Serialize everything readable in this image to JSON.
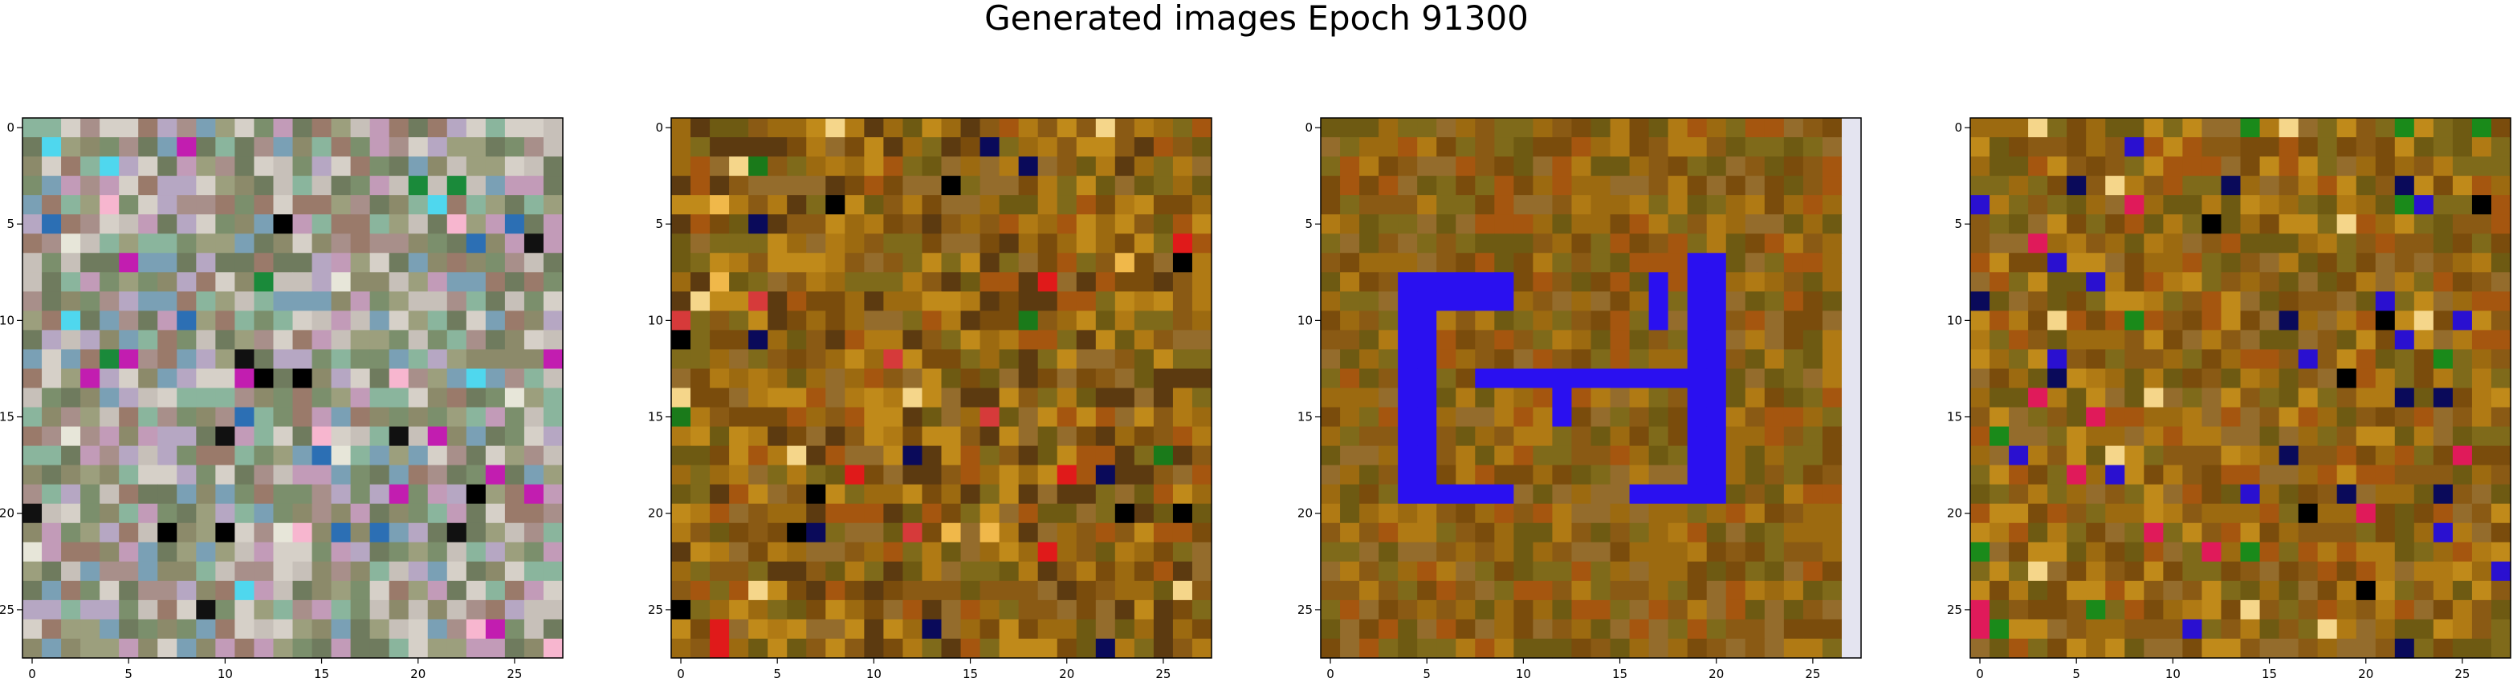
{
  "title": "Generated images Epoch 91300",
  "chart_data": {
    "type": "heatmap",
    "title": "Generated images Epoch 91300",
    "panels": 4,
    "grid_size": [
      28,
      28
    ],
    "xlim": [
      0,
      27
    ],
    "ylim": [
      27,
      0
    ],
    "x_ticks": [
      0,
      5,
      10,
      15,
      20,
      25
    ],
    "y_ticks": [
      0,
      5,
      10,
      15,
      20,
      25
    ],
    "xlabel": "",
    "ylabel": "",
    "grid": false,
    "images": [
      {
        "description": "noisy multicolored pastel pixel image",
        "palette": [
          "#8c8a6a",
          "#9c9f7d",
          "#a88f8a",
          "#7b8f6c",
          "#c7c0b9",
          "#6f7b5e",
          "#b6a7c3",
          "#8ab59d",
          "#d6d0c8",
          "#9a7a6a",
          "#7aa0b5",
          "#c29bb8"
        ],
        "accents": [
          "#000000",
          "#111111",
          "#4fd7ee",
          "#1a8a3a",
          "#c21db0",
          "#f7b6cf",
          "#e7e6d9",
          "#2c6fb4"
        ]
      },
      {
        "description": "noisy brown-orange pixel image",
        "palette": [
          "#8a5a14",
          "#9c6a10",
          "#7a4c0c",
          "#b07a14",
          "#6e5a12",
          "#946c2c",
          "#a5560f",
          "#7f6a1a",
          "#c08a1a",
          "#5c3a10"
        ],
        "accents": [
          "#000000",
          "#e01a1a",
          "#1a7a1a",
          "#f0b84a",
          "#0a0a5a",
          "#d63a3a",
          "#f5d68a"
        ]
      },
      {
        "description": "brown-orange pixel image with blue spiral shape",
        "palette": [
          "#8a5a14",
          "#9c6a10",
          "#7a4c0c",
          "#b07a14",
          "#6e5a12",
          "#946c2c",
          "#a5560f",
          "#7f6a1a"
        ],
        "shape_color": "#2a10f0",
        "edge_column_color": "#e4e4f0"
      },
      {
        "description": "noisy brown-orange pixel image",
        "palette": [
          "#8a5a14",
          "#9c6a10",
          "#7a4c0c",
          "#b07a14",
          "#6e5a12",
          "#946c2c",
          "#a5560f",
          "#7f6a1a",
          "#c08a1a"
        ],
        "accents": [
          "#000000",
          "#1a8a1a",
          "#2a10d0",
          "#e01a5a",
          "#f5d68a",
          "#0a0a5a"
        ]
      }
    ]
  }
}
